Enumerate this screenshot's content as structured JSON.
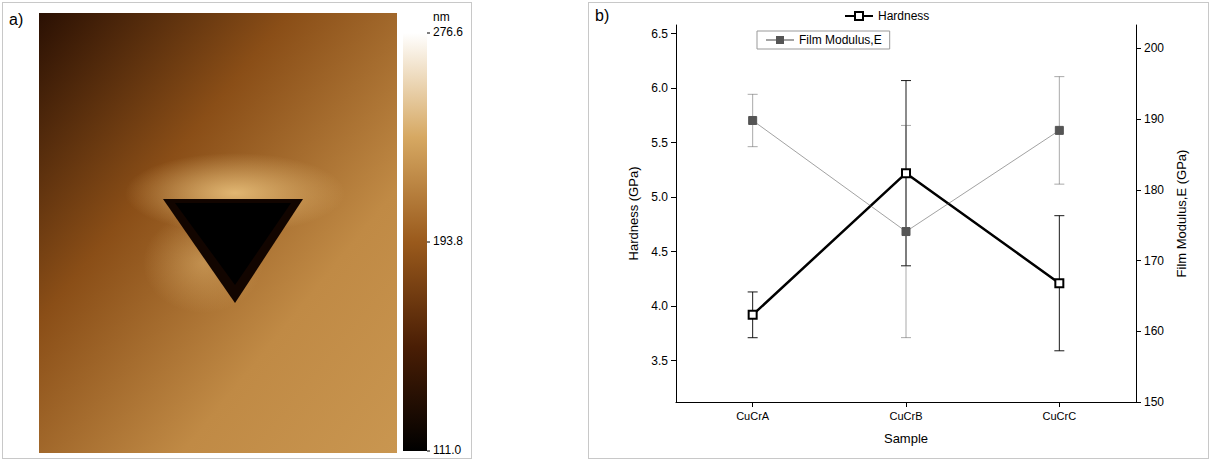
{
  "panel_a": {
    "panel_label": "a)",
    "type": "image",
    "colorbar": {
      "title": "nm",
      "range": [
        111.0,
        276.6
      ],
      "ticks": [
        {
          "value": 111.0,
          "label": "111.0"
        },
        193.8,
        276.6
      ]
    }
  },
  "chart_data": {
    "type": "line",
    "panel_label": "b)",
    "x_label": "Sample",
    "y_label": "Hardness (GPa)",
    "y2_label": "Film Modulus,E (GPa)",
    "categories": [
      "CuCrA",
      "CuCrB",
      "CuCrC"
    ],
    "series": [
      {
        "name": "Hardness",
        "color": "#000000",
        "marker": "open_square",
        "line_style": "solid",
        "values": [
          3.92,
          5.22,
          4.21
        ],
        "errors": [
          0.21,
          0.85,
          0.62
        ]
      },
      {
        "name": "Film Modulus,E",
        "color": "#555555",
        "marker": "square",
        "line_style": "solid",
        "axis": "y2",
        "values": [
          189.8,
          174.1,
          188.4
        ],
        "errors": [
          3.7,
          15,
          7.6
        ]
      }
    ],
    "ylim": [
      3.12,
      6.58
    ],
    "yticks": [
      3.5,
      {
        "value": 4.0,
        "label": "4.0"
      },
      4.5,
      {
        "value": 5.0,
        "label": "5.0"
      },
      5.5,
      {
        "value": 6.0,
        "label": "6.0"
      },
      6.5
    ],
    "y2lim": [
      150,
      203.3
    ],
    "y2ticks": [
      150,
      160,
      170,
      180,
      190,
      200
    ],
    "legend": "top",
    "grid": false
  }
}
